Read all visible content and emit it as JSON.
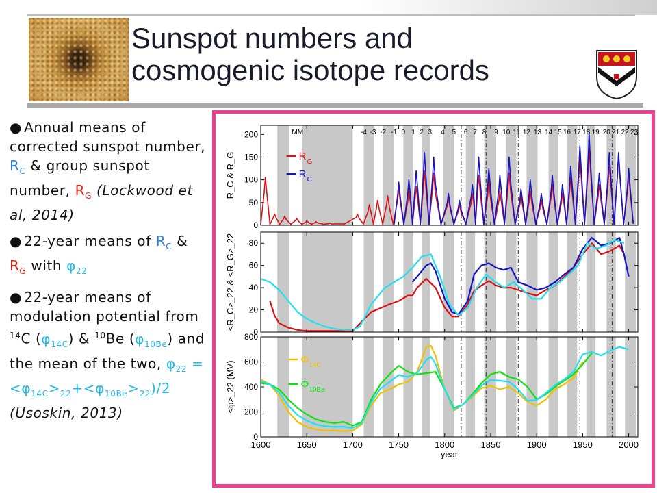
{
  "slide": {
    "title_line1": "Sunspot numbers and",
    "title_line2": "cosmogenic isotope records",
    "bullets": [
      {
        "parts": [
          "Annual means of corrected sunspot number, ",
          "R",
          "C",
          " & group sunspot number, ",
          "R",
          "G",
          " ",
          "(Lockwood et al, 2014)"
        ]
      },
      {
        "parts": [
          "22-year means of ",
          "R",
          "C",
          " & ",
          "R",
          "G",
          " with ",
          "φ",
          "22"
        ]
      },
      {
        "parts": [
          "22-year means of modulation potential from ",
          "14",
          "C (",
          "φ",
          "14C",
          ") & ",
          "10",
          "Be (",
          "φ",
          "10Be",
          ") and the mean of the two, ",
          "φ",
          "22",
          " = <",
          "φ",
          "14C",
          ">",
          "22",
          "+<",
          "φ",
          "10Be",
          ">",
          "22",
          ")/2 ",
          "(Usoskin, 2013)"
        ]
      }
    ],
    "colors": {
      "accent_frame": "#ef3f8e",
      "rc": "#1414c8",
      "rg": "#e01010",
      "cyan": "#20e0f0",
      "phi14c": "#f0c000",
      "phi10be": "#10e010"
    }
  },
  "chart_data": {
    "type": "line",
    "xlabel": "year",
    "xlim": [
      1600,
      2010
    ],
    "x_ticks": [
      "1600",
      "1650",
      "1700",
      "1750",
      "1800",
      "1850",
      "1900",
      "1950",
      "2000"
    ],
    "cycle_labels": [
      "MM",
      "-4",
      "-3",
      "-2",
      "-1",
      "0",
      "1",
      "2",
      "3",
      "4",
      "5",
      "6",
      "7",
      "8",
      "9",
      "10",
      "11",
      "12",
      "13",
      "14",
      "15",
      "16",
      "17",
      "18",
      "19",
      "20",
      "21",
      "22",
      "23"
    ],
    "gray_bands": [
      [
        1618,
        1631
      ],
      [
        1645,
        1700
      ],
      [
        1712,
        1723
      ],
      [
        1733,
        1745
      ],
      [
        1755,
        1766
      ],
      [
        1775,
        1784
      ],
      [
        1798,
        1810
      ],
      [
        1823,
        1833
      ],
      [
        1843,
        1856
      ],
      [
        1867,
        1878
      ],
      [
        1889,
        1901
      ],
      [
        1913,
        1923
      ],
      [
        1933,
        1944
      ],
      [
        1954,
        1964
      ],
      [
        1976,
        1986
      ],
      [
        1996,
        2008
      ]
    ],
    "dashdot_lines": [
      1818,
      1845,
      1880,
      1947,
      1982
    ],
    "panels": [
      {
        "ylabel": "R_C & R_G",
        "ylim": [
          0,
          220
        ],
        "y_ticks": [
          0,
          50,
          100,
          150,
          200
        ],
        "legend": [
          {
            "label": "R",
            "sub": "G"
          },
          {
            "label": "R",
            "sub": "C"
          }
        ],
        "series": [
          {
            "name": "R_G",
            "peak_years": [
              1605,
              1615,
              1626,
              1639,
              1650,
              1660,
              1675,
              1705,
              1718,
              1727,
              1738,
              1750,
              1761,
              1769,
              1778,
              1788,
              1804,
              1816,
              1830,
              1837,
              1848,
              1860,
              1870,
              1883,
              1893,
              1905,
              1917,
              1928,
              1937,
              1947,
              1957,
              1968,
              1979,
              1989,
              2000
            ],
            "peak_values": [
              105,
              25,
              20,
              15,
              10,
              8,
              5,
              25,
              45,
              55,
              65,
              80,
              75,
              85,
              120,
              115,
              60,
              45,
              70,
              110,
              95,
              75,
              115,
              65,
              75,
              55,
              90,
              70,
              105,
              150,
              170,
              90,
              135,
              155,
              110
            ]
          },
          {
            "name": "R_C",
            "peak_years": [
              1750,
              1761,
              1769,
              1778,
              1788,
              1804,
              1816,
              1830,
              1837,
              1848,
              1860,
              1870,
              1883,
              1893,
              1905,
              1917,
              1928,
              1937,
              1947,
              1957,
              1968,
              1979,
              1989,
              2000
            ],
            "peak_values": [
              95,
              100,
              120,
              160,
              150,
              70,
              55,
              90,
              150,
              125,
              110,
              150,
              80,
              100,
              70,
              110,
              90,
              130,
              175,
              200,
              115,
              160,
              160,
              125
            ]
          }
        ]
      },
      {
        "ylabel": "<R_C>_22 & <R_G>_22",
        "ylim": [
          0,
          90
        ],
        "y_ticks": [
          0,
          20,
          40,
          60,
          80
        ],
        "series": [
          {
            "name": "<R_G>_22",
            "x": [
              1610,
              1615,
              1620,
              1630,
              1640,
              1650,
              1660,
              1680,
              1700,
              1708,
              1720,
              1740,
              1750,
              1760,
              1765,
              1770,
              1780,
              1790,
              1800,
              1808,
              1815,
              1825,
              1832,
              1840,
              1848,
              1856,
              1864,
              1872,
              1880,
              1890,
              1900,
              1910,
              1920,
              1930,
              1940,
              1950,
              1960,
              1970,
              1980,
              1990,
              1995
            ],
            "y": [
              28,
              15,
              8,
              4,
              2,
              1,
              1,
              1,
              1,
              8,
              18,
              25,
              28,
              33,
              33,
              40,
              48,
              40,
              22,
              14,
              14,
              25,
              37,
              42,
              46,
              42,
              40,
              40,
              38,
              35,
              33,
              38,
              42,
              50,
              58,
              70,
              80,
              70,
              73,
              78,
              70
            ]
          },
          {
            "name": "<R_C>_22",
            "x": [
              1765,
              1770,
              1775,
              1780,
              1785,
              1790,
              1800,
              1808,
              1815,
              1825,
              1832,
              1840,
              1848,
              1856,
              1864,
              1872,
              1880,
              1890,
              1900,
              1910,
              1920,
              1930,
              1940,
              1950,
              1960,
              1970,
              1980,
              1990,
              1995,
              2000
            ],
            "y": [
              45,
              50,
              55,
              60,
              62,
              55,
              30,
              18,
              16,
              28,
              52,
              60,
              62,
              58,
              56,
              58,
              45,
              42,
              38,
              40,
              45,
              52,
              58,
              75,
              85,
              78,
              80,
              85,
              70,
              50
            ]
          },
          {
            "name": "<φ>_22",
            "x": [
              1600,
              1610,
              1620,
              1630,
              1640,
              1650,
              1660,
              1670,
              1680,
              1690,
              1700,
              1708,
              1720,
              1735,
              1745,
              1755,
              1765,
              1775,
              1785,
              1795,
              1805,
              1815,
              1825,
              1835,
              1845,
              1855,
              1865,
              1875,
              1885,
              1895,
              1905,
              1915,
              1925,
              1935,
              1945,
              1955,
              1965,
              1975,
              1985,
              1995
            ],
            "y": [
              48,
              45,
              38,
              28,
              18,
              12,
              8,
              5,
              3,
              2,
              2,
              5,
              25,
              40,
              45,
              50,
              58,
              68,
              70,
              50,
              25,
              15,
              22,
              40,
              52,
              45,
              40,
              45,
              38,
              30,
              30,
              40,
              45,
              52,
              60,
              80,
              75,
              78,
              83,
              80
            ]
          }
        ]
      },
      {
        "ylabel": "<φ>_22 (MV)",
        "ylim": [
          0,
          800
        ],
        "y_ticks": [
          0,
          200,
          400,
          600,
          800
        ],
        "legend": [
          {
            "label": "Φ",
            "sub": "14C"
          },
          {
            "label": "Φ",
            "sub": "10Be"
          }
        ],
        "series": [
          {
            "name": "Φ_14C",
            "x": [
              1600,
              1610,
              1620,
              1630,
              1640,
              1650,
              1660,
              1670,
              1680,
              1690,
              1700,
              1710,
              1720,
              1730,
              1740,
              1750,
              1760,
              1770,
              1780,
              1785,
              1790,
              1800,
              1810,
              1820,
              1830,
              1840,
              1850,
              1860,
              1870,
              1880,
              1890,
              1900,
              1910,
              1920,
              1930,
              1940,
              1950
            ],
            "y": [
              460,
              420,
              330,
              200,
              120,
              80,
              60,
              50,
              50,
              45,
              50,
              100,
              250,
              350,
              380,
              420,
              440,
              520,
              720,
              730,
              650,
              380,
              210,
              260,
              320,
              390,
              410,
              380,
              400,
              350,
              280,
              250,
              300,
              380,
              420,
              470,
              600
            ]
          },
          {
            "name": "Φ_10Be",
            "x": [
              1600,
              1610,
              1620,
              1630,
              1640,
              1650,
              1660,
              1670,
              1680,
              1690,
              1700,
              1710,
              1720,
              1730,
              1740,
              1750,
              1760,
              1770,
              1780,
              1790,
              1800,
              1810,
              1820,
              1830,
              1840,
              1850,
              1860,
              1870,
              1880,
              1890,
              1900,
              1910,
              1920,
              1930,
              1940,
              1950,
              1960
            ],
            "y": [
              430,
              420,
              380,
              300,
              230,
              180,
              140,
              120,
              110,
              120,
              90,
              120,
              300,
              420,
              500,
              570,
              520,
              500,
              510,
              520,
              380,
              230,
              260,
              340,
              430,
              500,
              520,
              480,
              460,
              400,
              300,
              340,
              400,
              450,
              500,
              580,
              670
            ]
          },
          {
            "name": "<φ>_22",
            "x": [
              1600,
              1610,
              1620,
              1630,
              1640,
              1650,
              1660,
              1670,
              1680,
              1690,
              1700,
              1710,
              1720,
              1730,
              1740,
              1750,
              1760,
              1770,
              1780,
              1785,
              1790,
              1800,
              1810,
              1820,
              1830,
              1840,
              1850,
              1860,
              1870,
              1880,
              1890,
              1900,
              1910,
              1920,
              1930,
              1940,
              1950,
              1960,
              1970,
              1980,
              1990,
              2000
            ],
            "y": [
              445,
              420,
              355,
              250,
              175,
              130,
              100,
              85,
              80,
              82,
              70,
              110,
              275,
              385,
              440,
              495,
              480,
              510,
              615,
              640,
              585,
              380,
              220,
              260,
              330,
              410,
              455,
              450,
              440,
              380,
              290,
              295,
              350,
              415,
              460,
              520,
              660,
              680,
              650,
              690,
              720,
              700
            ]
          }
        ]
      }
    ]
  }
}
